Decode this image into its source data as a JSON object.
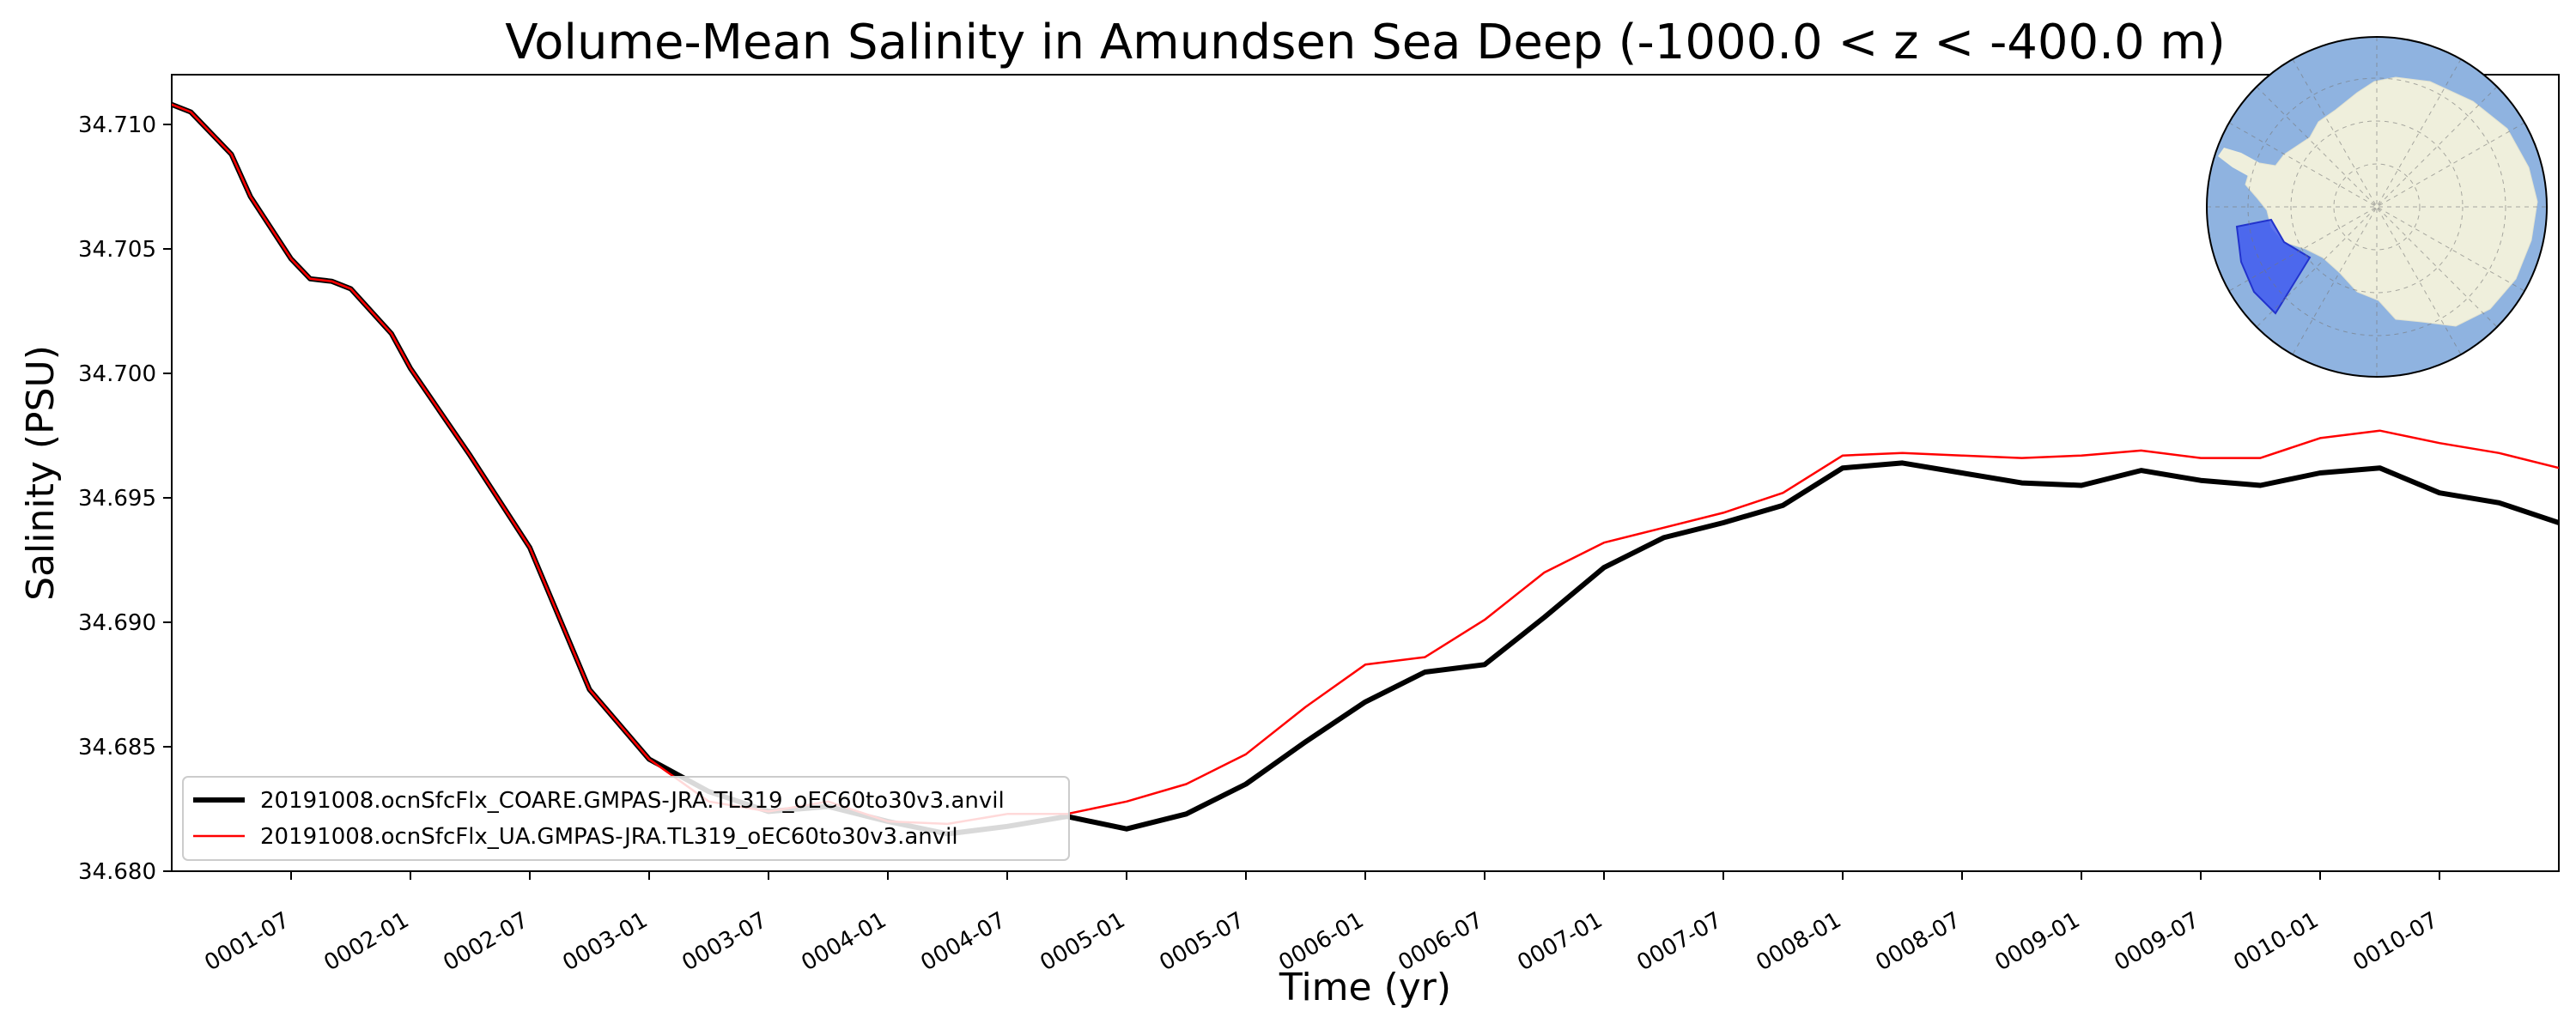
{
  "chart_data": {
    "type": "line",
    "title": "Volume-Mean Salinity in Amundsen Sea Deep (-1000.0 < z < -400.0 m)",
    "xlabel": "Time (yr)",
    "ylabel": "Salinity (PSU)",
    "xlim": [
      0.0,
      10.0
    ],
    "ylim": [
      34.68,
      34.712
    ],
    "y_ticks": [
      34.68,
      34.685,
      34.69,
      34.695,
      34.7,
      34.705,
      34.71
    ],
    "y_tick_labels": [
      "34.680",
      "34.685",
      "34.690",
      "34.695",
      "34.700",
      "34.705",
      "34.710"
    ],
    "x_ticks": [
      0.5,
      1.0,
      1.5,
      2.0,
      2.5,
      3.0,
      3.5,
      4.0,
      4.5,
      5.0,
      5.5,
      6.0,
      6.5,
      7.0,
      7.5,
      8.0,
      8.5,
      9.0,
      9.5
    ],
    "x_tick_labels": [
      "0001-07",
      "0002-01",
      "0002-07",
      "0003-01",
      "0003-07",
      "0004-01",
      "0004-07",
      "0005-01",
      "0005-07",
      "0006-01",
      "0006-07",
      "0007-01",
      "0007-07",
      "0008-01",
      "0008-07",
      "0009-01",
      "0009-07",
      "0010-01",
      "0010-07"
    ],
    "grid": false,
    "legend_position": "lower-left",
    "series": [
      {
        "name": "20191008.ocnSfcFlx_COARE.GMPAS-JRA.TL319_oEC60to30v3.anvil",
        "color": "#000000",
        "x": [
          0.0,
          0.08,
          0.25,
          0.33,
          0.5,
          0.58,
          0.67,
          0.75,
          0.92,
          1.0,
          1.25,
          1.5,
          1.75,
          2.0,
          2.25,
          2.5,
          2.75,
          3.0,
          3.25,
          3.5,
          3.75,
          4.0,
          4.25,
          4.5,
          4.75,
          5.0,
          5.25,
          5.5,
          5.75,
          6.0,
          6.25,
          6.5,
          6.75,
          7.0,
          7.25,
          7.5,
          7.75,
          8.0,
          8.25,
          8.5,
          8.75,
          9.0,
          9.25,
          9.5,
          9.75,
          10.0
        ],
        "y": [
          34.7108,
          34.7105,
          34.7088,
          34.7071,
          34.7046,
          34.7038,
          34.7037,
          34.7034,
          34.7016,
          34.7002,
          34.6967,
          34.693,
          34.6873,
          34.6845,
          34.6832,
          34.6824,
          34.6826,
          34.682,
          34.6815,
          34.6818,
          34.6822,
          34.6817,
          34.6823,
          34.6835,
          34.6852,
          34.6868,
          34.688,
          34.6883,
          34.6902,
          34.6922,
          34.6934,
          34.694,
          34.6947,
          34.6962,
          34.6964,
          34.696,
          34.6956,
          34.6955,
          34.6961,
          34.6957,
          34.6955,
          34.696,
          34.6962,
          34.6952,
          34.6948,
          34.694
        ],
        "line_width": "thick"
      },
      {
        "name": "20191008.ocnSfcFlx_UA.GMPAS-JRA.TL319_oEC60to30v3.anvil",
        "color": "#ff0000",
        "x": [
          0.0,
          0.08,
          0.25,
          0.33,
          0.5,
          0.58,
          0.67,
          0.75,
          0.92,
          1.0,
          1.25,
          1.5,
          1.75,
          2.0,
          2.25,
          2.5,
          2.75,
          3.0,
          3.25,
          3.5,
          3.75,
          4.0,
          4.25,
          4.5,
          4.75,
          5.0,
          5.25,
          5.5,
          5.75,
          6.0,
          6.25,
          6.5,
          6.75,
          7.0,
          7.25,
          7.5,
          7.75,
          8.0,
          8.25,
          8.5,
          8.75,
          9.0,
          9.25,
          9.5,
          9.75,
          10.0
        ],
        "y": [
          34.7108,
          34.7105,
          34.7088,
          34.7071,
          34.7046,
          34.7038,
          34.7037,
          34.7034,
          34.7016,
          34.7002,
          34.6967,
          34.693,
          34.6873,
          34.6845,
          34.6828,
          34.6824,
          34.6828,
          34.682,
          34.6819,
          34.6823,
          34.6823,
          34.6828,
          34.6835,
          34.6847,
          34.6866,
          34.6883,
          34.6886,
          34.6901,
          34.692,
          34.6932,
          34.6938,
          34.6944,
          34.6952,
          34.6967,
          34.6968,
          34.6967,
          34.6966,
          34.6967,
          34.6969,
          34.6966,
          34.6966,
          34.6974,
          34.6977,
          34.6972,
          34.6968,
          34.6962
        ],
        "line_width": "thin"
      }
    ]
  },
  "inset_map": {
    "description_icon": "antarctica-polar-map",
    "ocean_color": "#8fb3e0",
    "land_color": "#efefdc",
    "region_color": "#3b55f0"
  }
}
